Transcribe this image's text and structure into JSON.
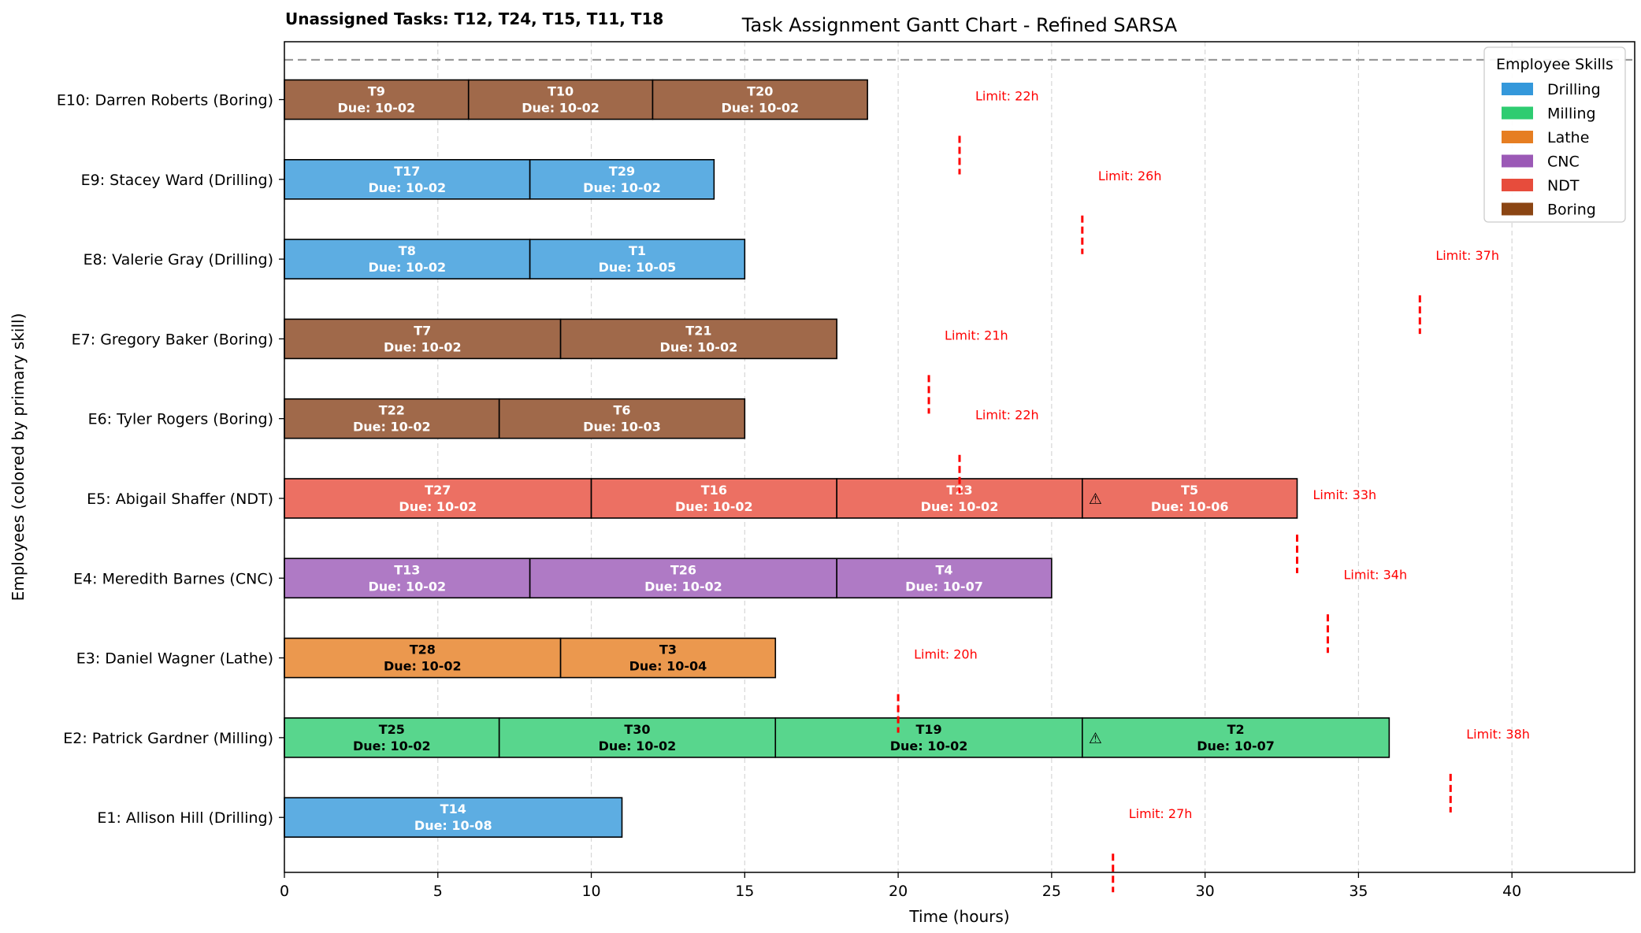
{
  "chart_data": {
    "type": "gantt",
    "title": "Task Assignment Gantt Chart - Refined SARSA",
    "unassigned_text": "Unassigned Tasks: T12, T24, T15, T11, T18",
    "xlabel": "Time (hours)",
    "ylabel": "Employees (colored by primary skill)",
    "xlim": [
      0,
      44
    ],
    "x_ticks": [
      0,
      5,
      10,
      15,
      20,
      25,
      30,
      35,
      40
    ],
    "grid_x": true,
    "legend": {
      "title": "Employee Skills",
      "placement": "top-right",
      "items": [
        {
          "label": "Drilling",
          "color": "#3498db"
        },
        {
          "label": "Milling",
          "color": "#2ecc71"
        },
        {
          "label": "Lathe",
          "color": "#e67e22"
        },
        {
          "label": "CNC",
          "color": "#9b59b6"
        },
        {
          "label": "NDT",
          "color": "#e74c3c"
        },
        {
          "label": "Boring",
          "color": "#8b4513"
        }
      ]
    },
    "skill_colors": {
      "Drilling": "#5dade2",
      "Milling": "#58d68d",
      "Lathe": "#eb984e",
      "CNC": "#af7ac5",
      "NDT": "#ec7063",
      "Boring": "#a0694a"
    },
    "employees": [
      {
        "label": "E10: Darren Roberts (Boring)",
        "skill": "Boring",
        "limit": 22,
        "limit_text": "Limit: 22h",
        "tasks": [
          {
            "name": "T9",
            "due": "Due: 10-02",
            "start": 0,
            "end": 6
          },
          {
            "name": "T10",
            "due": "Due: 10-02",
            "start": 6,
            "end": 12
          },
          {
            "name": "T20",
            "due": "Due: 10-02",
            "start": 12,
            "end": 19
          }
        ]
      },
      {
        "label": "E9: Stacey Ward (Drilling)",
        "skill": "Drilling",
        "limit": 26,
        "limit_text": "Limit: 26h",
        "tasks": [
          {
            "name": "T17",
            "due": "Due: 10-02",
            "start": 0,
            "end": 8
          },
          {
            "name": "T29",
            "due": "Due: 10-02",
            "start": 8,
            "end": 14
          }
        ]
      },
      {
        "label": "E8: Valerie Gray (Drilling)",
        "skill": "Drilling",
        "limit": 37,
        "limit_text": "Limit: 37h",
        "tasks": [
          {
            "name": "T8",
            "due": "Due: 10-02",
            "start": 0,
            "end": 8
          },
          {
            "name": "T1",
            "due": "Due: 10-05",
            "start": 8,
            "end": 15
          }
        ]
      },
      {
        "label": "E7: Gregory Baker (Boring)",
        "skill": "Boring",
        "limit": 21,
        "limit_text": "Limit: 21h",
        "tasks": [
          {
            "name": "T7",
            "due": "Due: 10-02",
            "start": 0,
            "end": 9
          },
          {
            "name": "T21",
            "due": "Due: 10-02",
            "start": 9,
            "end": 18
          }
        ]
      },
      {
        "label": "E6: Tyler Rogers (Boring)",
        "skill": "Boring",
        "limit": 22,
        "limit_text": "Limit: 22h",
        "tasks": [
          {
            "name": "T22",
            "due": "Due: 10-02",
            "start": 0,
            "end": 7
          },
          {
            "name": "T6",
            "due": "Due: 10-03",
            "start": 7,
            "end": 15
          }
        ]
      },
      {
        "label": "E5: Abigail Shaffer (NDT)",
        "skill": "NDT",
        "limit": 33,
        "limit_text": "Limit: 33h",
        "tasks": [
          {
            "name": "T27",
            "due": "Due: 10-02",
            "start": 0,
            "end": 10
          },
          {
            "name": "T16",
            "due": "Due: 10-02",
            "start": 10,
            "end": 18
          },
          {
            "name": "T23",
            "due": "Due: 10-02",
            "start": 18,
            "end": 26
          },
          {
            "name": "T5",
            "due": "Due: 10-06",
            "start": 26,
            "end": 33,
            "warning": "⚠"
          }
        ]
      },
      {
        "label": "E4: Meredith Barnes (CNC)",
        "skill": "CNC",
        "limit": 34,
        "limit_text": "Limit: 34h",
        "tasks": [
          {
            "name": "T13",
            "due": "Due: 10-02",
            "start": 0,
            "end": 8
          },
          {
            "name": "T26",
            "due": "Due: 10-02",
            "start": 8,
            "end": 18
          },
          {
            "name": "T4",
            "due": "Due: 10-07",
            "start": 18,
            "end": 25
          }
        ]
      },
      {
        "label": "E3: Daniel Wagner (Lathe)",
        "skill": "Lathe",
        "limit": 20,
        "limit_text": "Limit: 20h",
        "tasks": [
          {
            "name": "T28",
            "due": "Due: 10-02",
            "start": 0,
            "end": 9
          },
          {
            "name": "T3",
            "due": "Due: 10-04",
            "start": 9,
            "end": 16
          }
        ]
      },
      {
        "label": "E2: Patrick Gardner (Milling)",
        "skill": "Milling",
        "limit": 38,
        "limit_text": "Limit: 38h",
        "tasks": [
          {
            "name": "T25",
            "due": "Due: 10-02",
            "start": 0,
            "end": 7
          },
          {
            "name": "T30",
            "due": "Due: 10-02",
            "start": 7,
            "end": 16
          },
          {
            "name": "T19",
            "due": "Due: 10-02",
            "start": 16,
            "end": 26
          },
          {
            "name": "T2",
            "due": "Due: 10-07",
            "start": 26,
            "end": 36,
            "warning": "⚠"
          }
        ]
      },
      {
        "label": "E1: Allison Hill (Drilling)",
        "skill": "Drilling",
        "limit": 27,
        "limit_text": "Limit: 27h",
        "tasks": [
          {
            "name": "T14",
            "due": "Due: 10-08",
            "start": 0,
            "end": 11
          }
        ]
      }
    ]
  }
}
